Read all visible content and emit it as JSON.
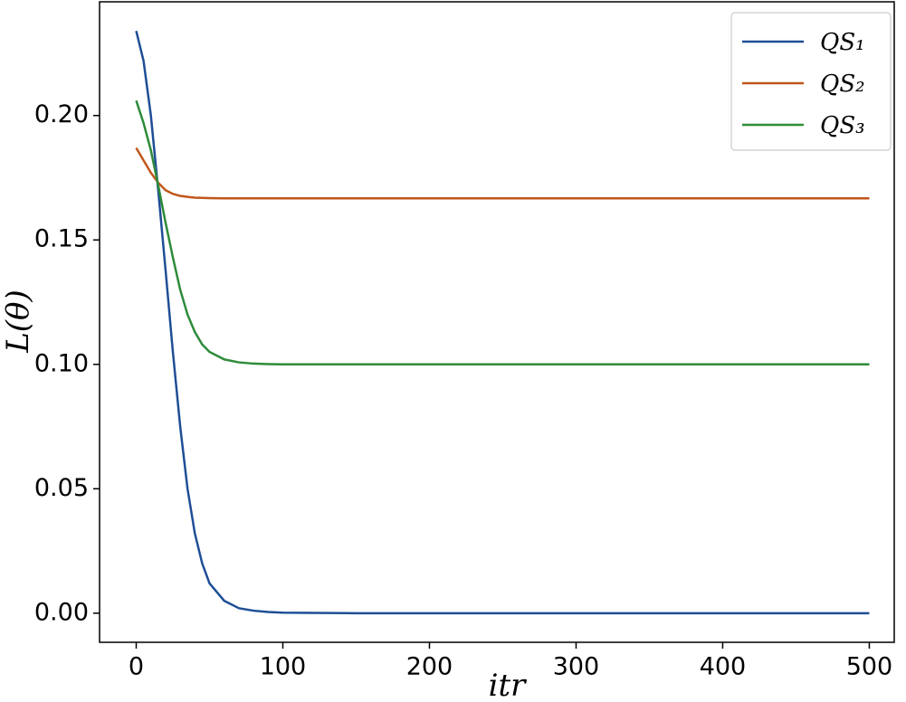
{
  "chart_data": {
    "type": "line",
    "xlabel": "itr",
    "ylabel": "L(θ)",
    "x": [
      0,
      5,
      10,
      15,
      20,
      25,
      30,
      35,
      40,
      45,
      50,
      60,
      70,
      80,
      90,
      100,
      120,
      150,
      200,
      300,
      400,
      500
    ],
    "series": [
      {
        "name": "QS₁",
        "color": "#1f4e96",
        "values": [
          0.234,
          0.222,
          0.2,
          0.17,
          0.138,
          0.105,
          0.075,
          0.05,
          0.032,
          0.02,
          0.012,
          0.005,
          0.002,
          0.001,
          0.0005,
          0.0002,
          0.0001,
          0,
          0,
          0,
          0,
          0
        ]
      },
      {
        "name": "QS₂",
        "color": "#c0561a",
        "values": [
          0.187,
          0.182,
          0.177,
          0.173,
          0.17,
          0.1685,
          0.1677,
          0.1673,
          0.167,
          0.1669,
          0.1668,
          0.1667,
          0.1667,
          0.1667,
          0.1667,
          0.1667,
          0.1667,
          0.1667,
          0.1667,
          0.1667,
          0.1667,
          0.1667
        ]
      },
      {
        "name": "QS₃",
        "color": "#2e8b3a",
        "values": [
          0.206,
          0.197,
          0.186,
          0.172,
          0.157,
          0.143,
          0.13,
          0.12,
          0.113,
          0.108,
          0.105,
          0.102,
          0.1008,
          0.1003,
          0.1001,
          0.1,
          0.1,
          0.1,
          0.1,
          0.1,
          0.1,
          0.1
        ]
      }
    ],
    "xlim": [
      -25,
      517
    ],
    "ylim": [
      -0.0117,
      0.2457
    ],
    "xticks": [
      0,
      100,
      200,
      300,
      400,
      500
    ],
    "yticks": [
      {
        "value": 0,
        "label": "0.00"
      },
      0.05,
      {
        "value": 0.1,
        "label": "0.10"
      },
      0.15,
      {
        "value": 0.2,
        "label": "0.20"
      }
    ],
    "legend": "upper right"
  }
}
